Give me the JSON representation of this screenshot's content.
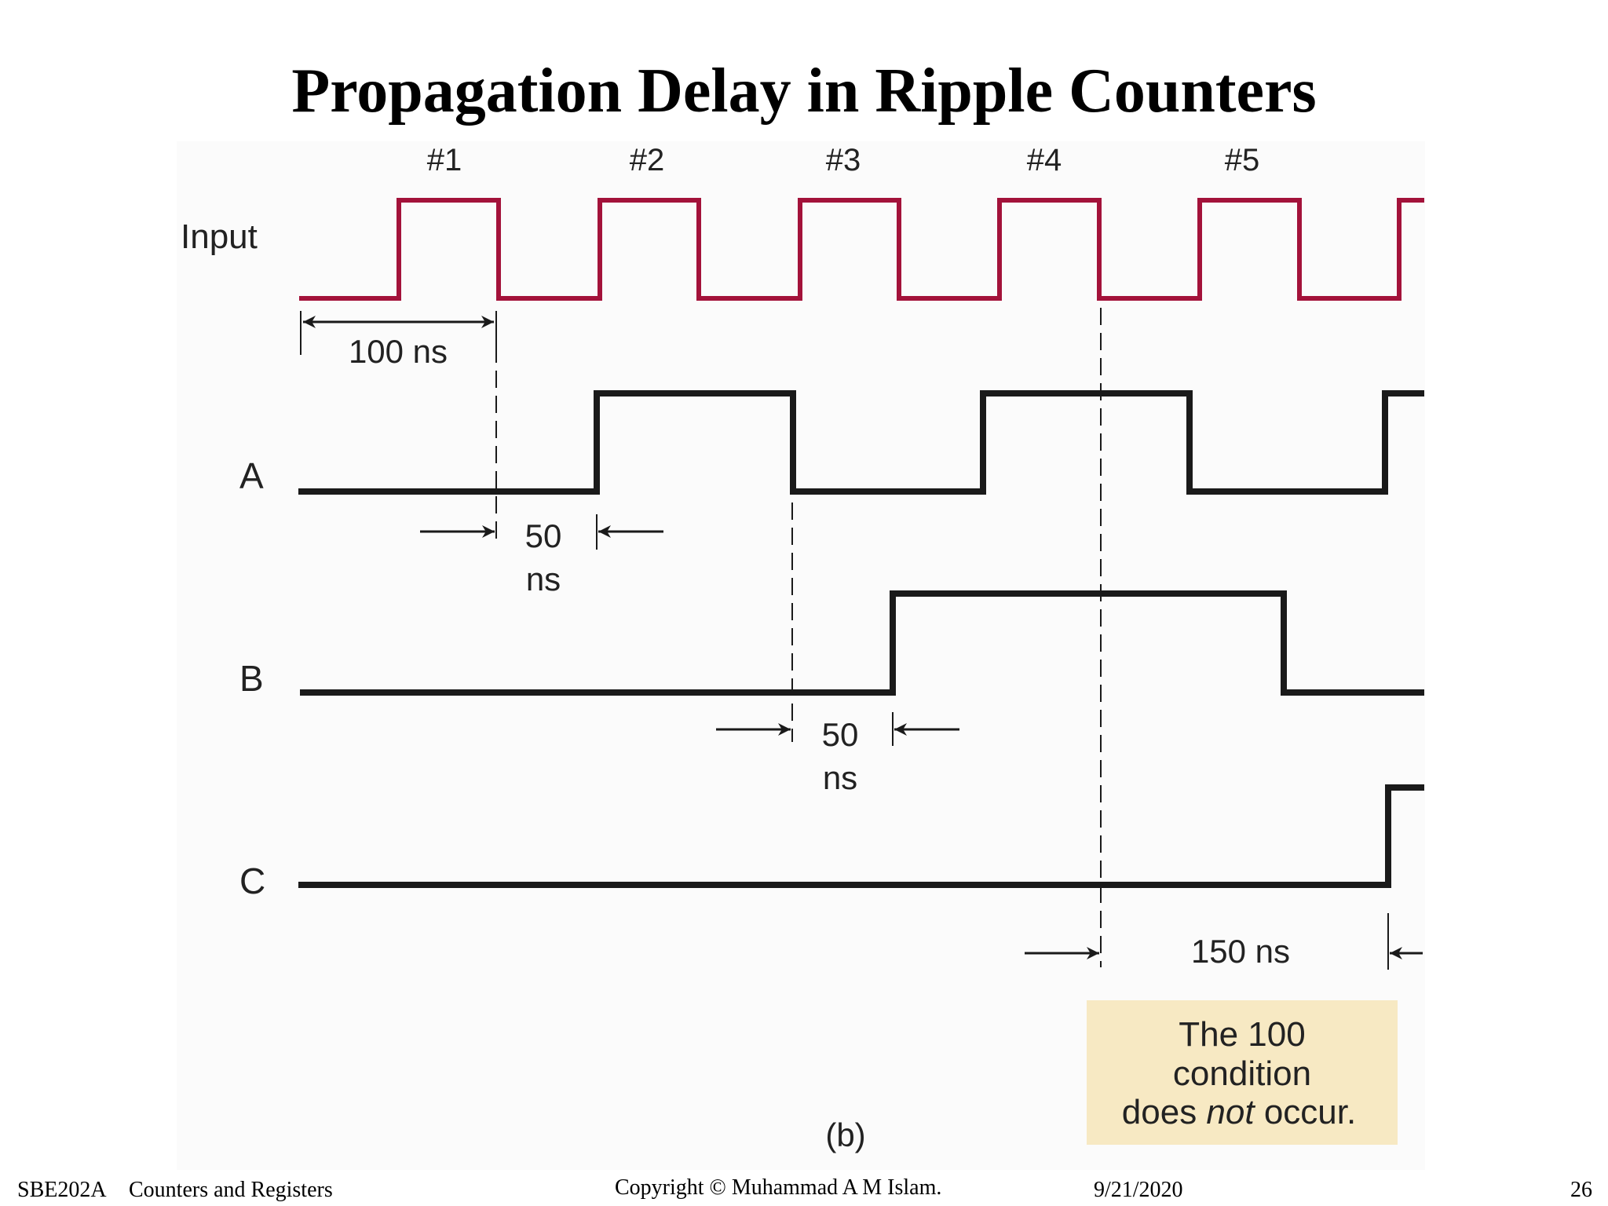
{
  "slide": {
    "title": "Propagation Delay in Ripple Counters"
  },
  "diagram": {
    "pulse_labels": [
      "#1",
      "#2",
      "#3",
      "#4",
      "#5"
    ],
    "signals": {
      "input": "Input",
      "a": "A",
      "b": "B",
      "c": "C"
    },
    "annotations": {
      "period": "100 ns",
      "delay_a_value": "50",
      "delay_a_unit": "ns",
      "delay_b_value": "50",
      "delay_b_unit": "ns",
      "delay_c": "150 ns"
    },
    "note": {
      "line1": "The 100",
      "line2": "condition",
      "line3_pre": "does ",
      "line3_em": "not",
      "line3_post": " occur."
    },
    "caption": "(b)",
    "colors": {
      "input_wave": "#a3123a",
      "wave": "#1a1a1a",
      "note_bg": "#f7e9c3",
      "diagram_bg": "#fbfbfb"
    }
  },
  "footer": {
    "course": "SBE202A",
    "topic": "Counters and Registers",
    "copyright": "Copyright © Muhammad A M Islam.",
    "date": "9/21/2020",
    "page": "26"
  }
}
